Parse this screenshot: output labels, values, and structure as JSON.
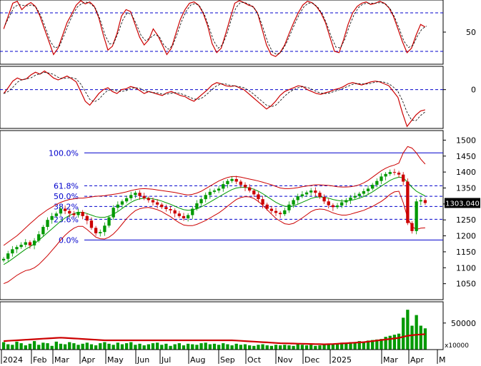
{
  "chart_data": [
    {
      "type": "line",
      "panel": "stochastic-oscillator",
      "y_ticks": [
        "50"
      ],
      "reference_lines": [
        80,
        20
      ],
      "ylim": [
        0,
        100
      ],
      "series": [
        {
          "values": [
            55,
            75,
            95,
            98,
            85,
            92,
            96,
            90,
            75,
            55,
            35,
            15,
            25,
            45,
            65,
            78,
            92,
            99,
            94,
            97,
            90,
            72,
            45,
            22,
            28,
            48,
            75,
            85,
            82,
            62,
            42,
            30,
            38,
            55,
            45,
            30,
            15,
            25,
            48,
            70,
            85,
            95,
            97,
            92,
            80,
            60,
            32,
            18,
            25,
            48,
            72,
            95,
            99,
            96,
            92,
            90,
            80,
            55,
            30,
            15,
            12,
            18,
            30,
            48,
            65,
            80,
            92,
            98,
            96,
            90,
            80,
            65,
            42,
            20,
            18,
            38,
            62,
            80,
            90,
            95,
            97,
            93,
            95,
            98,
            95,
            88,
            75,
            55,
            35,
            18,
            25,
            45,
            62,
            58
          ]
        }
      ]
    },
    {
      "type": "line",
      "panel": "momentum-oscillator",
      "y_ticks": [
        "0"
      ],
      "reference_lines": [
        0
      ],
      "ylim": [
        -100,
        60
      ],
      "series": [
        {
          "values": [
            -10,
            5,
            22,
            30,
            25,
            28,
            38,
            45,
            40,
            48,
            40,
            30,
            25,
            30,
            35,
            28,
            20,
            -5,
            -30,
            -40,
            -25,
            -10,
            0,
            5,
            -5,
            -10,
            0,
            2,
            8,
            5,
            -2,
            -10,
            -5,
            -8,
            -12,
            -15,
            -8,
            -5,
            -10,
            -15,
            -18,
            -25,
            -30,
            -20,
            -10,
            0,
            12,
            18,
            15,
            10,
            8,
            10,
            5,
            0,
            -10,
            -20,
            -30,
            -40,
            -50,
            -42,
            -30,
            -15,
            -5,
            0,
            5,
            10,
            8,
            0,
            -5,
            -10,
            -12,
            -8,
            -5,
            0,
            3,
            8,
            15,
            18,
            15,
            12,
            16,
            20,
            22,
            20,
            15,
            10,
            -5,
            -20,
            -60,
            -95,
            -80,
            -65,
            -55,
            -52
          ]
        }
      ]
    },
    {
      "type": "candlestick",
      "panel": "price",
      "y_ticks": [
        "1500",
        "1450",
        "1400",
        "1350",
        "1300",
        "1250",
        "1200",
        "1150",
        "1100",
        "1050"
      ],
      "ylim": [
        1000,
        1530
      ],
      "last_price_label": "1303.040",
      "fibonacci_levels": [
        {
          "label": "100.0%",
          "value": 1460
        },
        {
          "label": "61.8%",
          "value": 1357
        },
        {
          "label": "50.0%",
          "value": 1324
        },
        {
          "label": "38.2%",
          "value": 1292
        },
        {
          "label": "23.6%",
          "value": 1252
        },
        {
          "label": "0.0%",
          "value": 1187
        }
      ],
      "close": [
        1128,
        1145,
        1158,
        1165,
        1172,
        1180,
        1170,
        1185,
        1205,
        1228,
        1250,
        1262,
        1270,
        1285,
        1278,
        1270,
        1265,
        1275,
        1262,
        1248,
        1225,
        1208,
        1212,
        1232,
        1258,
        1288,
        1298,
        1308,
        1318,
        1328,
        1335,
        1325,
        1318,
        1312,
        1305,
        1298,
        1290,
        1284,
        1280,
        1270,
        1262,
        1255,
        1265,
        1285,
        1302,
        1315,
        1328,
        1338,
        1342,
        1348,
        1362,
        1372,
        1378,
        1370,
        1360,
        1352,
        1342,
        1330,
        1315,
        1298,
        1285,
        1278,
        1272,
        1268,
        1280,
        1298,
        1312,
        1324,
        1330,
        1336,
        1342,
        1335,
        1322,
        1308,
        1296,
        1290,
        1295,
        1305,
        1312,
        1320,
        1325,
        1332,
        1340,
        1348,
        1360,
        1372,
        1386,
        1394,
        1400,
        1398,
        1392,
        1370,
        1240,
        1215,
        1308,
        1312,
        1303
      ],
      "sma": [
        1110,
        1118,
        1128,
        1138,
        1148,
        1158,
        1166,
        1175,
        1186,
        1198,
        1210,
        1222,
        1234,
        1246,
        1256,
        1264,
        1270,
        1274,
        1274,
        1270,
        1265,
        1260,
        1258,
        1258,
        1262,
        1268,
        1276,
        1286,
        1296,
        1305,
        1312,
        1316,
        1318,
        1318,
        1316,
        1313,
        1309,
        1304,
        1299,
        1293,
        1287,
        1282,
        1280,
        1281,
        1285,
        1291,
        1298,
        1306,
        1314,
        1322,
        1330,
        1338,
        1345,
        1350,
        1352,
        1352,
        1350,
        1346,
        1340,
        1332,
        1323,
        1314,
        1305,
        1298,
        1293,
        1292,
        1294,
        1299,
        1305,
        1311,
        1317,
        1321,
        1322,
        1321,
        1318,
        1314,
        1311,
        1309,
        1309,
        1311,
        1314,
        1318,
        1323,
        1330,
        1338,
        1347,
        1356,
        1365,
        1374,
        1380,
        1384,
        1382,
        1368,
        1352,
        1340,
        1332,
        1325
      ],
      "bollinger_upper": [
        1170,
        1180,
        1190,
        1200,
        1212,
        1225,
        1238,
        1250,
        1262,
        1272,
        1282,
        1290,
        1298,
        1305,
        1310,
        1314,
        1316,
        1318,
        1318,
        1320,
        1322,
        1324,
        1325,
        1326,
        1328,
        1330,
        1332,
        1335,
        1338,
        1342,
        1345,
        1347,
        1348,
        1347,
        1346,
        1344,
        1342,
        1340,
        1338,
        1336,
        1333,
        1330,
        1328,
        1330,
        1334,
        1340,
        1348,
        1356,
        1364,
        1372,
        1378,
        1383,
        1386,
        1386,
        1384,
        1381,
        1378,
        1375,
        1372,
        1368,
        1364,
        1360,
        1355,
        1350,
        1348,
        1348,
        1349,
        1351,
        1354,
        1356,
        1358,
        1360,
        1360,
        1359,
        1358,
        1356,
        1354,
        1353,
        1353,
        1354,
        1356,
        1360,
        1366,
        1374,
        1384,
        1394,
        1404,
        1412,
        1418,
        1422,
        1428,
        1460,
        1480,
        1475,
        1460,
        1440,
        1425
      ],
      "bollinger_lower": [
        1050,
        1056,
        1066,
        1076,
        1084,
        1091,
        1094,
        1100,
        1110,
        1124,
        1138,
        1154,
        1170,
        1187,
        1202,
        1214,
        1224,
        1230,
        1230,
        1220,
        1208,
        1196,
        1191,
        1190,
        1196,
        1206,
        1220,
        1237,
        1254,
        1268,
        1279,
        1285,
        1288,
        1289,
        1286,
        1282,
        1276,
        1268,
        1260,
        1250,
        1241,
        1234,
        1232,
        1232,
        1236,
        1242,
        1248,
        1256,
        1264,
        1272,
        1282,
        1293,
        1304,
        1314,
        1320,
        1323,
        1322,
        1317,
        1308,
        1296,
        1282,
        1268,
        1255,
        1246,
        1238,
        1236,
        1239,
        1247,
        1256,
        1266,
        1276,
        1282,
        1284,
        1283,
        1278,
        1272,
        1268,
        1265,
        1265,
        1268,
        1272,
        1276,
        1280,
        1286,
        1292,
        1300,
        1308,
        1318,
        1330,
        1338,
        1340,
        1304,
        1256,
        1229,
        1220,
        1224,
        1225
      ]
    },
    {
      "type": "bar",
      "panel": "volume",
      "y_ticks": [
        "50000"
      ],
      "unit_label": "x10000",
      "ylim": [
        0,
        90000
      ],
      "values": [
        14000,
        10000,
        9000,
        15000,
        12000,
        8000,
        11000,
        16000,
        9000,
        13000,
        12000,
        7000,
        15000,
        11000,
        10000,
        14000,
        12000,
        9000,
        11000,
        13000,
        10000,
        8000,
        12000,
        14000,
        11000,
        9000,
        13000,
        10000,
        12000,
        14000,
        9000,
        11000,
        8000,
        10000,
        12000,
        13000,
        9000,
        11000,
        7000,
        10000,
        12000,
        8000,
        11000,
        10000,
        9000,
        12000,
        13000,
        10000,
        11000,
        9000,
        12000,
        10000,
        8000,
        11000,
        9000,
        10000,
        8000,
        7000,
        9000,
        10000,
        8000,
        7000,
        9000,
        8000,
        9000,
        8000,
        7000,
        10000,
        9000,
        8000,
        9000,
        7000,
        8000,
        9000,
        10000,
        11000,
        10000,
        13000,
        12000,
        14000,
        13000,
        16000,
        15000,
        17000,
        18000,
        19000,
        20000,
        24000,
        26000,
        28000,
        30000,
        60000,
        75000,
        45000,
        65000,
        45000,
        40000
      ],
      "moving_average": [
        16000,
        16500,
        17000,
        17500,
        18000,
        18500,
        19000,
        19500,
        20000,
        20500,
        21000,
        21500,
        22000,
        22500,
        22000,
        21500,
        21000,
        20500,
        20000,
        19500,
        19000,
        18500,
        18000,
        17500,
        17500,
        17500,
        17500,
        17500,
        17500,
        17500,
        17500,
        17500,
        17500,
        17500,
        17500,
        17500,
        17500,
        17500,
        17500,
        17500,
        17500,
        17500,
        17500,
        17500,
        17500,
        17500,
        17500,
        17500,
        17500,
        17500,
        17500,
        17500,
        17500,
        17000,
        16500,
        16000,
        15500,
        15000,
        14500,
        14000,
        13500,
        13000,
        12500,
        12000,
        11800,
        11600,
        11400,
        11200,
        11000,
        10800,
        10600,
        10400,
        10200,
        10000,
        10200,
        10500,
        11000,
        11500,
        12000,
        12500,
        13000,
        13500,
        14000,
        15000,
        16000,
        17000,
        18000,
        19000,
        20000,
        21000,
        22000,
        24000,
        26000,
        27000,
        28000,
        28500,
        29000
      ]
    }
  ],
  "x_axis": {
    "labels": [
      "2024",
      "Feb",
      "Mar",
      "Apr",
      "May",
      "Jun",
      "Jul",
      "Aug",
      "Sep",
      "Oct",
      "Nov",
      "Dec",
      "2025",
      "Mar",
      "Apr",
      "M"
    ]
  }
}
